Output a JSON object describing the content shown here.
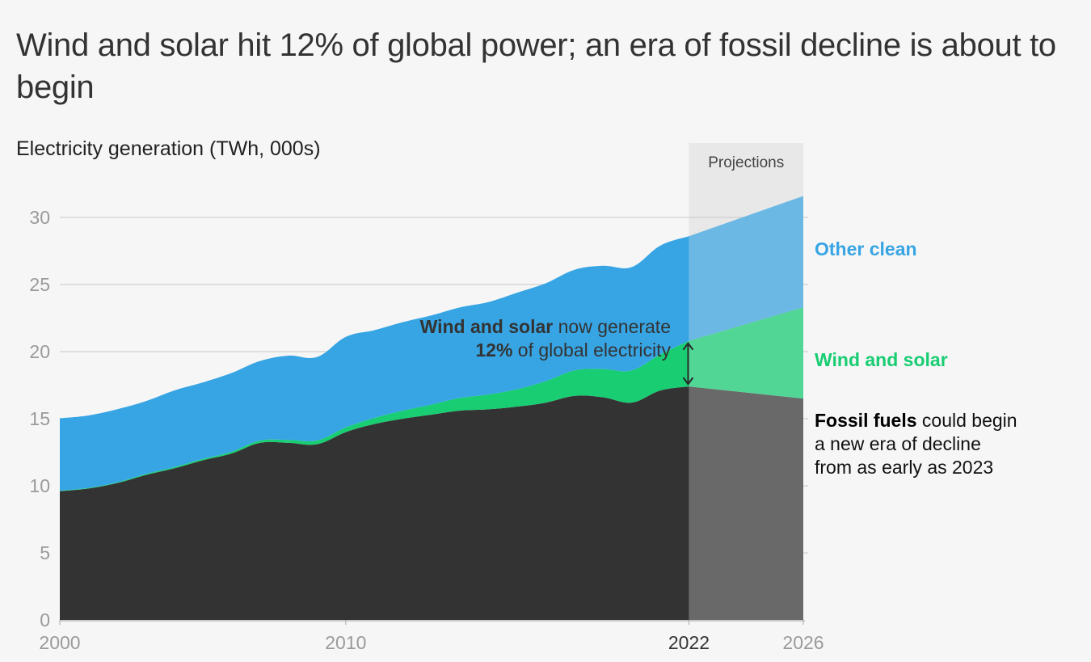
{
  "header": {
    "title": "Wind and solar hit 12% of global power; an era of fossil decline is about to begin",
    "subtitle": "Electricity generation (TWh, 000s)"
  },
  "annotations": {
    "projections_label": "Projections",
    "share_bold_1": "Wind and solar",
    "share_text_1": " now generate",
    "share_bold_2": "12%",
    "share_text_2": " of global electricity",
    "fossil_bold": "Fossil fuels",
    "fossil_text_1": " could begin",
    "fossil_text_2": "a new era of decline",
    "fossil_text_3": "from as early as 2023"
  },
  "chart_data": {
    "type": "area",
    "stacked": true,
    "title": "Wind and solar hit 12% of global power; an era of fossil decline is about to begin",
    "ylabel": "Electricity generation (TWh, 000s)",
    "xlabel": "",
    "ylim": [
      0,
      30
    ],
    "yticks": [
      0,
      5,
      10,
      15,
      20,
      25,
      30
    ],
    "xlim": [
      2000,
      2026
    ],
    "xticks": [
      2000,
      2010,
      2022,
      2026
    ],
    "highlighted_xtick": 2022,
    "grid": true,
    "projection_start": 2022,
    "projection_end": 2026,
    "x": [
      2000,
      2001,
      2002,
      2003,
      2004,
      2005,
      2006,
      2007,
      2008,
      2009,
      2010,
      2011,
      2012,
      2013,
      2014,
      2015,
      2016,
      2017,
      2018,
      2019,
      2020,
      2021,
      2022
    ],
    "series": [
      {
        "name": "Fossil fuels",
        "color": "#333333",
        "projection_color": "#696969",
        "values": [
          9.6,
          9.8,
          10.2,
          10.8,
          11.3,
          11.9,
          12.4,
          13.2,
          13.2,
          13.1,
          14.0,
          14.6,
          15.0,
          15.3,
          15.6,
          15.7,
          15.9,
          16.2,
          16.7,
          16.6,
          16.2,
          17.1,
          17.4
        ],
        "projection": {
          "2022": 17.4,
          "2026": 16.5
        }
      },
      {
        "name": "Wind and solar",
        "color": "#18cd72",
        "projection_color": "#52d695",
        "values": [
          0.03,
          0.04,
          0.05,
          0.07,
          0.09,
          0.1,
          0.13,
          0.17,
          0.22,
          0.28,
          0.35,
          0.45,
          0.6,
          0.75,
          0.95,
          1.1,
          1.3,
          1.6,
          1.9,
          2.1,
          2.4,
          2.7,
          3.4
        ],
        "projection": {
          "2022": 3.4,
          "2026": 6.8
        }
      },
      {
        "name": "Other clean",
        "color": "#37a5e4",
        "projection_color": "#6bb8e4",
        "values": [
          5.4,
          5.4,
          5.45,
          5.43,
          5.71,
          5.7,
          5.87,
          5.93,
          6.28,
          6.22,
          6.75,
          6.55,
          6.6,
          6.65,
          6.75,
          6.9,
          7.2,
          7.3,
          7.5,
          7.7,
          7.7,
          8.1,
          7.8
        ],
        "projection": {
          "2022": 7.8,
          "2026": 8.3
        }
      }
    ],
    "legend": [
      {
        "label": "Other clean",
        "color": "#37a5e4",
        "position": "right"
      },
      {
        "label": "Wind and solar",
        "color": "#18cd72",
        "position": "right"
      },
      {
        "label": "Fossil fuels",
        "color": "#000000",
        "position": "right"
      }
    ]
  }
}
